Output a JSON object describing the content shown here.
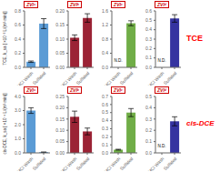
{
  "chart_data": [
    {
      "type": "bar",
      "title": "ZVIᵃ",
      "ylabel": "TCE, k_sa [ ×10⁻² L/(m²·min)]",
      "categories": [
        "HCl Wash",
        "Sulfided"
      ],
      "values": [
        0.08,
        0.62
      ],
      "errors": [
        0.01,
        0.07
      ],
      "color": "#5B9BD5",
      "ylim": [
        0,
        0.8
      ],
      "yticks": [
        {
          "value": 0,
          "label": "0.0"
        },
        0.2,
        0.4,
        0.6,
        0.8
      ]
    },
    {
      "type": "bar",
      "title": "ZVIᵇ",
      "categories": [
        "HCl Wash",
        "Sulfided"
      ],
      "values": [
        0.105,
        0.175
      ],
      "errors": [
        0.01,
        0.015
      ],
      "color": "#9B2335",
      "ylim": [
        0,
        0.2
      ],
      "yticks": [
        {
          "value": 0,
          "label": "0.00"
        },
        0.05,
        {
          "value": 0.1,
          "label": "0.10"
        },
        0.15,
        {
          "value": 0.2,
          "label": "0.20"
        }
      ]
    },
    {
      "type": "bar",
      "title": "ZVIᶜ",
      "categories": [
        "HCl Wash",
        "Sulfided"
      ],
      "values": [
        0.0,
        1.25
      ],
      "errors": [
        0.0,
        0.07
      ],
      "color": "#70AD47",
      "ylim": [
        0,
        1.6
      ],
      "yticks": [
        {
          "value": 0,
          "label": "0.0"
        },
        0.4,
        0.8,
        1.2,
        1.6
      ],
      "annotations": [
        {
          "text": "N.D.",
          "x": "HCl Wash"
        }
      ]
    },
    {
      "type": "bar",
      "title": "ZVIᵈ",
      "categories": [
        "HCl Wash",
        "Sulfided"
      ],
      "values": [
        0.0,
        0.52
      ],
      "errors": [
        0.0,
        0.04
      ],
      "color": "#3533A0",
      "ylim": [
        0,
        0.6
      ],
      "yticks": [
        {
          "value": 0,
          "label": "0.0"
        },
        0.1,
        0.2,
        0.3,
        0.4,
        0.5,
        0.6
      ],
      "annotations": [
        {
          "text": "N.D.",
          "x": "HCl Wash"
        },
        {
          "text": "TCE"
        }
      ]
    },
    {
      "type": "bar",
      "title": "ZVIᵃ",
      "ylabel": "cis-DCE, k_sa [ ×10⁻⁵ L/(m²·min)]",
      "categories": [
        "HCl Wash",
        "Sulfided"
      ],
      "values": [
        3.0,
        0.05
      ],
      "errors": [
        0.2,
        0.01
      ],
      "color": "#5B9BD5",
      "ylim": [
        0,
        4.0
      ],
      "yticks": [
        {
          "value": 0,
          "label": "0.0"
        },
        {
          "value": 1,
          "label": "1.0"
        },
        {
          "value": 2,
          "label": "2.0"
        },
        {
          "value": 3,
          "label": "3.0"
        },
        {
          "value": 4,
          "label": "4.0"
        }
      ]
    },
    {
      "type": "bar",
      "title": "ZVIᵇ",
      "categories": [
        "HCl Wash",
        "Sulfided"
      ],
      "values": [
        0.16,
        0.095
      ],
      "errors": [
        0.025,
        0.015
      ],
      "color": "#9B2335",
      "ylim": [
        0,
        0.25
      ],
      "yticks": [
        {
          "value": 0,
          "label": "0.00"
        },
        0.05,
        {
          "value": 0.1,
          "label": "0.10"
        },
        0.15,
        {
          "value": 0.2,
          "label": "0.20"
        },
        0.25
      ]
    },
    {
      "type": "bar",
      "title": "ZVIᶜ",
      "categories": [
        "HCl Wash",
        "Sulfided"
      ],
      "values": [
        0.04,
        0.5
      ],
      "errors": [
        0.005,
        0.05
      ],
      "color": "#70AD47",
      "ylim": [
        0,
        0.7
      ],
      "yticks": [
        {
          "value": 0,
          "label": "0.0"
        },
        0.1,
        0.2,
        0.3,
        0.4,
        0.5,
        0.6,
        0.7
      ]
    },
    {
      "type": "bar",
      "title": "ZVIᵈ",
      "categories": [
        "HCl Wash",
        "Sulfided"
      ],
      "values": [
        0.0,
        0.28
      ],
      "errors": [
        0.0,
        0.04
      ],
      "color": "#3533A0",
      "ylim": [
        0,
        0.5
      ],
      "yticks": [
        {
          "value": 0,
          "label": "0.0"
        },
        0.1,
        0.2,
        0.3,
        0.4,
        0.5
      ],
      "annotations": [
        {
          "text": "N.D.",
          "x": "HCl Wash"
        },
        {
          "text": "cis-DCE"
        }
      ]
    }
  ]
}
